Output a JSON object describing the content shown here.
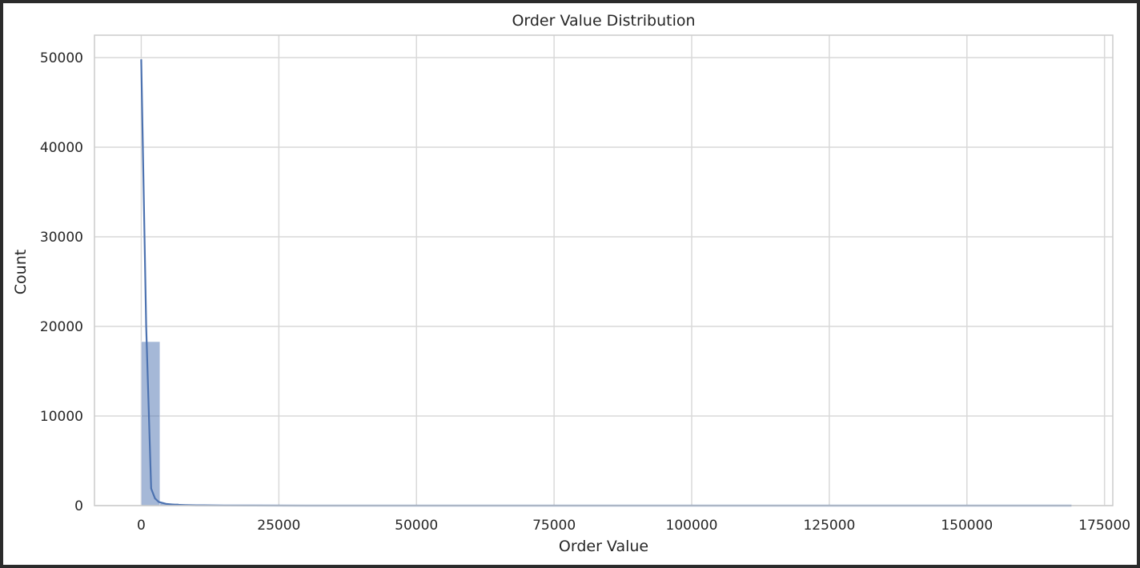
{
  "chart_data": {
    "type": "bar",
    "title": "Order Value Distribution",
    "xlabel": "Order Value",
    "ylabel": "Count",
    "xlim": [
      -8500,
      176500
    ],
    "ylim": [
      0,
      52500
    ],
    "xticks": [
      0,
      25000,
      50000,
      75000,
      100000,
      125000,
      150000,
      175000
    ],
    "xtick_labels": [
      "0",
      "25000",
      "50000",
      "75000",
      "100000",
      "125000",
      "150000",
      "175000"
    ],
    "yticks": [
      0,
      10000,
      20000,
      30000,
      40000,
      50000
    ],
    "ytick_labels": [
      "0",
      "10000",
      "20000",
      "30000",
      "40000",
      "50000"
    ],
    "grid": true,
    "bar_color": "#4c72b0",
    "kde_color": "#4c72b0",
    "bins": [
      {
        "x0": 0,
        "x1": 3400,
        "count": 18300
      },
      {
        "x0": 3400,
        "x1": 6800,
        "count": 250
      },
      {
        "x0": 6800,
        "x1": 10200,
        "count": 60
      },
      {
        "x0": 10200,
        "x1": 13600,
        "count": 25
      },
      {
        "x0": 13600,
        "x1": 17000,
        "count": 10
      }
    ],
    "kde": {
      "x": [
        0,
        900,
        1800,
        2500,
        3200,
        4500,
        6000,
        8000,
        10000,
        15000,
        20000,
        30000,
        50000,
        100000,
        169000
      ],
      "y": [
        49800,
        20000,
        1900,
        800,
        400,
        200,
        110,
        60,
        35,
        15,
        8,
        3,
        1,
        0,
        0
      ]
    }
  }
}
